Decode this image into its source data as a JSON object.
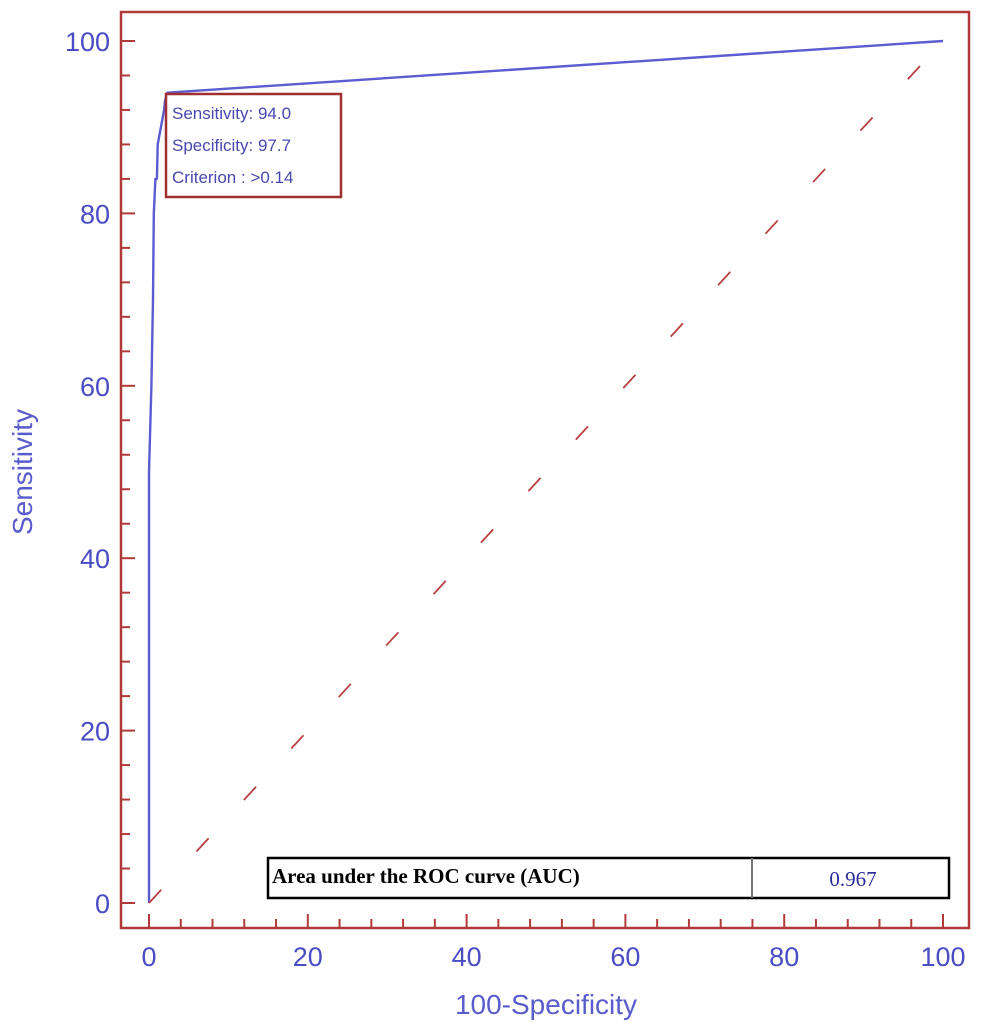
{
  "chart_data": {
    "type": "line",
    "title": "",
    "xlabel": "100-Specificity",
    "ylabel": "Sensitivity",
    "xlim": [
      0,
      100
    ],
    "ylim": [
      0,
      100
    ],
    "x_ticks": [
      0,
      20,
      40,
      60,
      80,
      100
    ],
    "y_ticks": [
      0,
      20,
      40,
      60,
      80,
      100
    ],
    "grid": false,
    "series": [
      {
        "style": "solid",
        "color": "#5a5cd0",
        "x": [
          0,
          0,
          0.3,
          0.5,
          0.6,
          0.8,
          1.0,
          1.1,
          1.3,
          1.5,
          1.7,
          1.9,
          2.0,
          2.3,
          100
        ],
        "y": [
          0,
          50,
          60,
          70,
          80,
          84,
          84,
          88,
          89,
          90,
          91,
          92,
          93,
          94,
          100
        ]
      },
      {
        "style": "dashed",
        "color": "#b84040",
        "x": [
          0,
          100
        ],
        "y": [
          0,
          100
        ]
      }
    ],
    "annotation": {
      "lines": [
        "Sensitivity: 94.0",
        "Specificity: 97.7",
        "Criterion : >0.14"
      ]
    },
    "auc": {
      "label": "Area under the ROC curve (AUC)",
      "value": "0.967"
    },
    "colors": {
      "frame": "#b03a3a",
      "text": "#4a4cc4"
    }
  }
}
